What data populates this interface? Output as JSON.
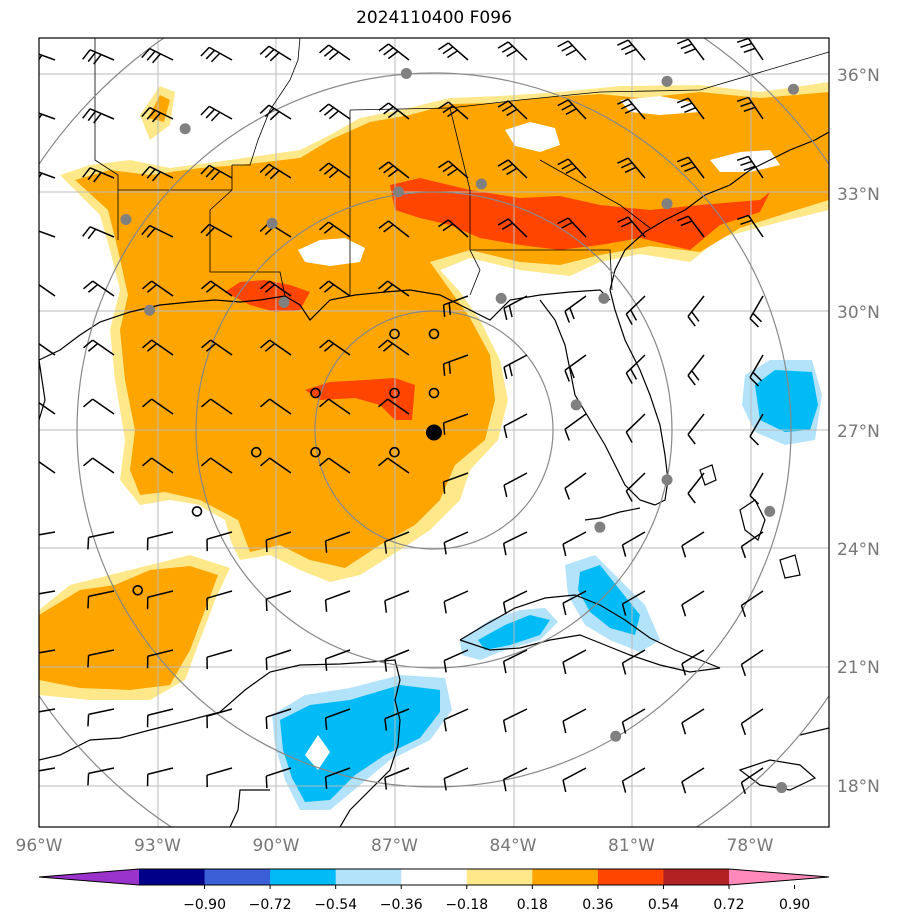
{
  "title": "2024110400 F096",
  "map": {
    "projection": "latlon",
    "lon_range": [
      -96,
      -76
    ],
    "lat_range": [
      17,
      37
    ],
    "lat_ticks": [
      {
        "value": 36,
        "label": "36°N"
      },
      {
        "value": 33,
        "label": "33°N"
      },
      {
        "value": 30,
        "label": "30°N"
      },
      {
        "value": 27,
        "label": "27°N"
      },
      {
        "value": 24,
        "label": "24°N"
      },
      {
        "value": 21,
        "label": "21°N"
      },
      {
        "value": 18,
        "label": "18°N"
      }
    ],
    "lon_ticks": [
      {
        "value": -96,
        "label": "96°W"
      },
      {
        "value": -93,
        "label": "93°W"
      },
      {
        "value": -90,
        "label": "90°W"
      },
      {
        "value": -87,
        "label": "87°W"
      },
      {
        "value": -84,
        "label": "84°W"
      },
      {
        "value": -81,
        "label": "81°W"
      },
      {
        "value": -78,
        "label": "78°W"
      }
    ],
    "center_marker": {
      "lon": -86,
      "lat": 27
    },
    "range_rings_deg": [
      3,
      6,
      9,
      12
    ],
    "open_circle_points": [
      {
        "lon": -87,
        "lat": 29.5
      },
      {
        "lon": -86,
        "lat": 29.5
      },
      {
        "lon": -89,
        "lat": 28
      },
      {
        "lon": -87,
        "lat": 28
      },
      {
        "lon": -86,
        "lat": 28
      },
      {
        "lon": -90.5,
        "lat": 26.5
      },
      {
        "lon": -89,
        "lat": 26.5
      },
      {
        "lon": -87,
        "lat": 26.5
      },
      {
        "lon": -92,
        "lat": 25
      },
      {
        "lon": -93.5,
        "lat": 23
      }
    ],
    "station_points": [
      {
        "lon": -86.7,
        "lat": 36.1
      },
      {
        "lon": -80.1,
        "lat": 35.9
      },
      {
        "lon": -92.3,
        "lat": 34.7
      },
      {
        "lon": -86.9,
        "lat": 33.1
      },
      {
        "lon": -84.8,
        "lat": 33.3
      },
      {
        "lon": -80.1,
        "lat": 32.8
      },
      {
        "lon": -93.8,
        "lat": 32.4
      },
      {
        "lon": -90.1,
        "lat": 32.3
      },
      {
        "lon": -93.2,
        "lat": 30.1
      },
      {
        "lon": -89.8,
        "lat": 30.3
      },
      {
        "lon": -84.3,
        "lat": 30.4
      },
      {
        "lon": -81.7,
        "lat": 30.4
      },
      {
        "lon": -82.4,
        "lat": 27.7
      },
      {
        "lon": -80.1,
        "lat": 25.8
      },
      {
        "lon": -81.8,
        "lat": 24.6
      },
      {
        "lon": -77.5,
        "lat": 25.0
      },
      {
        "lon": -81.4,
        "lat": 19.3
      },
      {
        "lon": -77.2,
        "lat": 18.0
      },
      {
        "lon": -76.9,
        "lat": 35.7
      }
    ],
    "fields": {
      "positive_bands": [
        "0.18 to 0.36",
        "0.36 to 0.54",
        "0.54 to 0.72"
      ],
      "negative_bands": [
        "-0.36 to -0.18",
        "-0.54 to -0.36"
      ]
    }
  },
  "colorbar": {
    "colors": [
      "#9933cc",
      "#000088",
      "#3b5fd6",
      "#00bbf5",
      "#b3e2fb",
      "#ffffff",
      "#ffe88a",
      "#ffa500",
      "#ff4500",
      "#b22222",
      "#ff88bb"
    ],
    "labels": [
      "−0.90",
      "−0.72",
      "−0.54",
      "−0.36",
      "−0.18",
      "0.18",
      "0.36",
      "0.54",
      "0.72",
      "0.90"
    ]
  }
}
